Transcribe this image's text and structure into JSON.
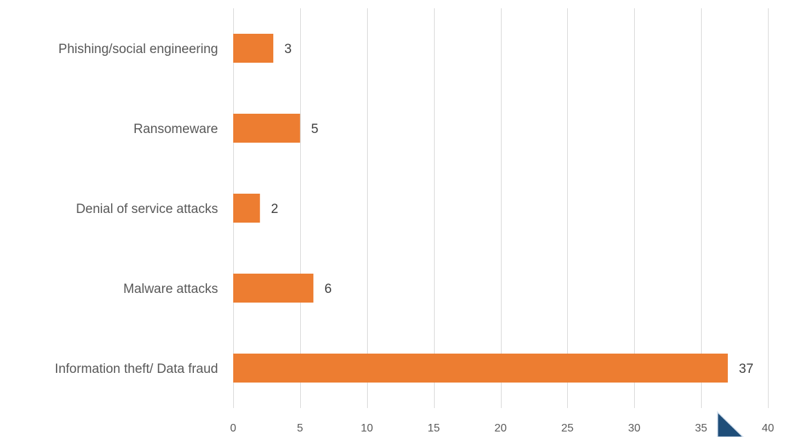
{
  "chart_data": {
    "type": "bar",
    "orientation": "horizontal",
    "categories": [
      "Phishing/social engineering",
      "Ransomeware",
      "Denial of service attacks",
      "Malware attacks",
      "Information theft/ Data fraud"
    ],
    "values": [
      3,
      5,
      2,
      6,
      37
    ],
    "data_labels": [
      "3",
      "5",
      "2",
      "6",
      "37"
    ],
    "xlim": [
      0,
      40
    ],
    "x_ticks": [
      0,
      5,
      10,
      15,
      20,
      25,
      30,
      35,
      40
    ],
    "x_tick_labels": [
      "0",
      "5",
      "10",
      "15",
      "20",
      "25",
      "30",
      "35",
      "40"
    ],
    "title": "",
    "xlabel": "",
    "ylabel": "",
    "grid": "vertical gridlines",
    "legend": "none",
    "bar_color": "#ED7D31",
    "gridline_color": "#D9D9D9",
    "text_color": "#595959",
    "data_label_color": "#404040",
    "corner_shape_color": "#1F4E79"
  }
}
